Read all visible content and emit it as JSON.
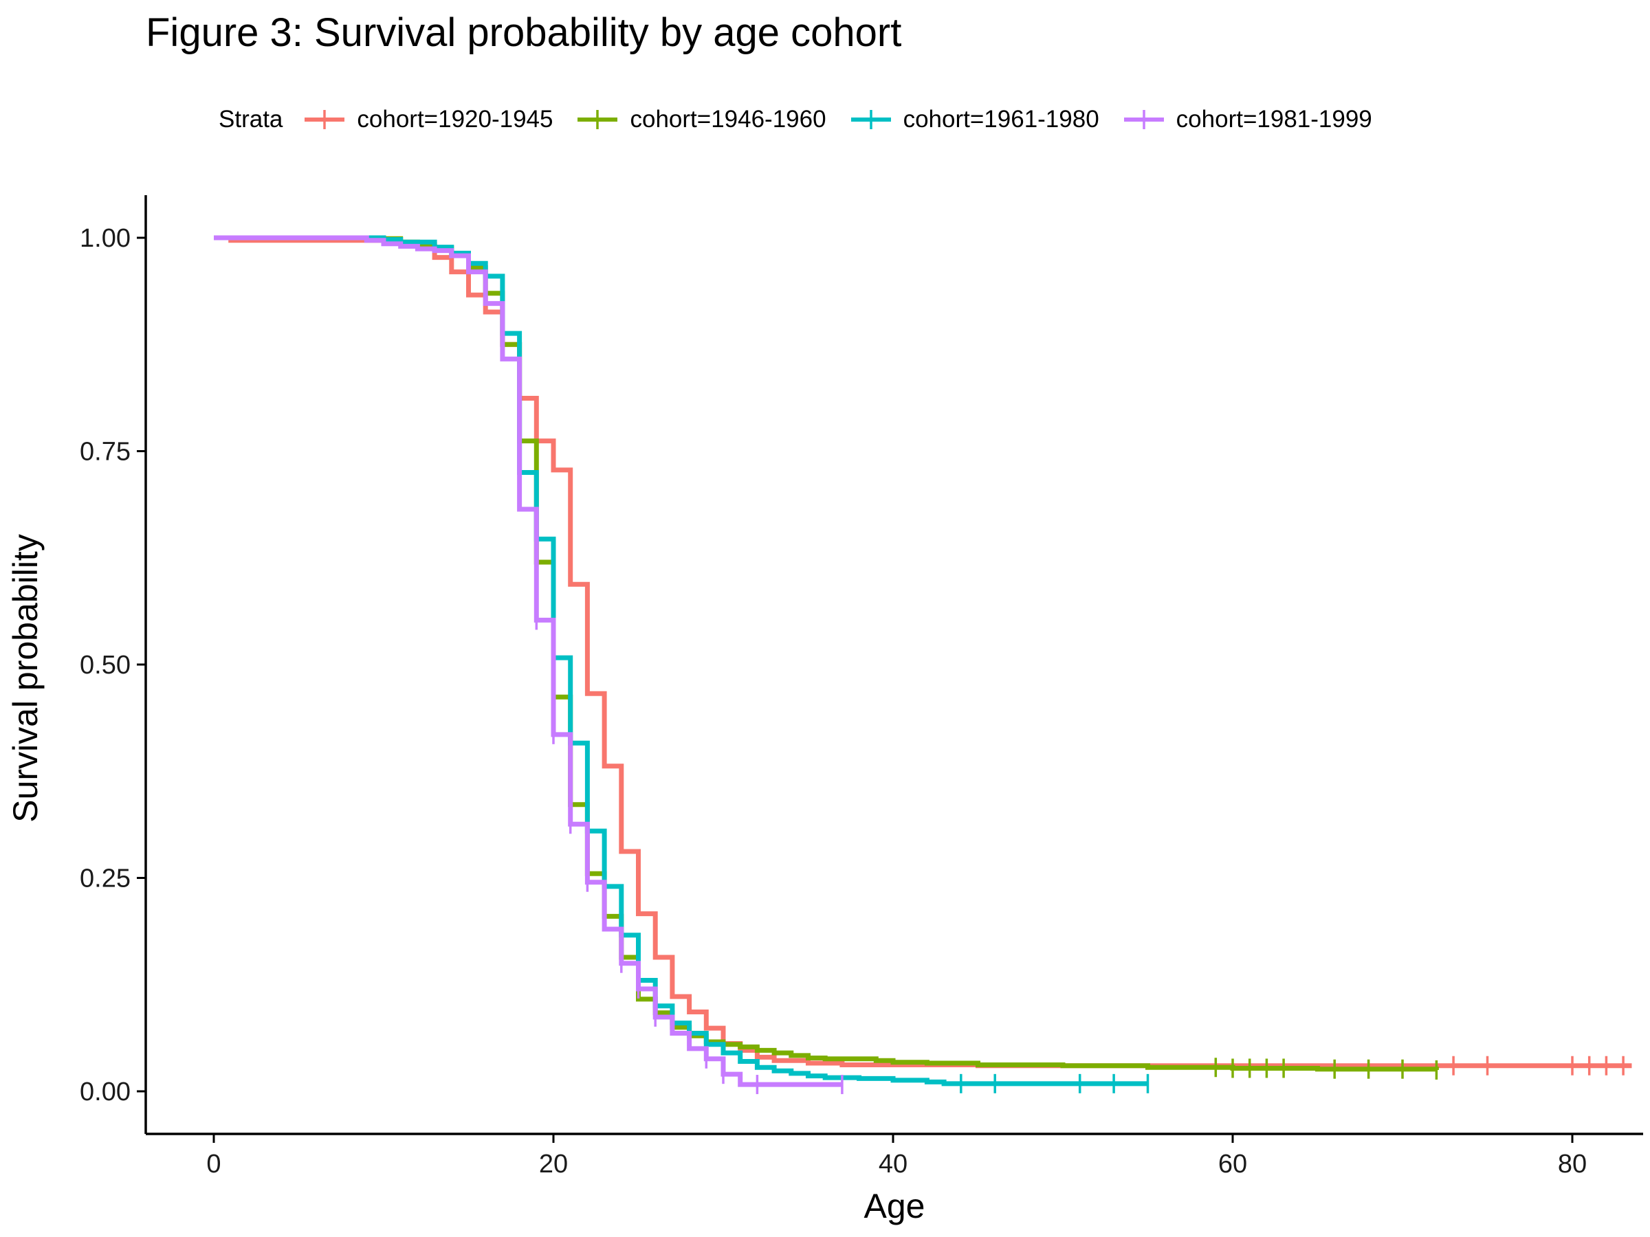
{
  "chart_data": {
    "type": "line",
    "title": "Figure 3: Survival probability by age cohort",
    "xlabel": "Age",
    "ylabel": "Survival probability",
    "xlim": [
      -5,
      83.5
    ],
    "ylim": [
      -0.05,
      1.05
    ],
    "x_ticks": [
      0,
      20,
      40,
      60,
      80
    ],
    "x_tick_labels": [
      "0",
      "20",
      "40",
      "60",
      "80"
    ],
    "y_ticks": [
      0,
      0.25,
      0.5,
      0.75,
      1.0
    ],
    "y_tick_labels": [
      "0.00",
      "0.25",
      "0.50",
      "0.75",
      "1.00"
    ],
    "grid": false,
    "legend_position": "top",
    "legend_title": "Strata",
    "series": [
      {
        "name": "cohort=1920-1945",
        "color": "#F8766D",
        "steps": [
          [
            0,
            1.0
          ],
          [
            1,
            0.997
          ],
          [
            10,
            0.996
          ],
          [
            11,
            0.993
          ],
          [
            12,
            0.99
          ],
          [
            13,
            0.977
          ],
          [
            14,
            0.96
          ],
          [
            15,
            0.933
          ],
          [
            16,
            0.913
          ],
          [
            17,
            0.875
          ],
          [
            18,
            0.812
          ],
          [
            19,
            0.762
          ],
          [
            20,
            0.728
          ],
          [
            21,
            0.594
          ],
          [
            22,
            0.466
          ],
          [
            23,
            0.381
          ],
          [
            24,
            0.281
          ],
          [
            25,
            0.208
          ],
          [
            26,
            0.157
          ],
          [
            27,
            0.111
          ],
          [
            28,
            0.093
          ],
          [
            29,
            0.074
          ],
          [
            30,
            0.056
          ],
          [
            31,
            0.048
          ],
          [
            32,
            0.04
          ],
          [
            33,
            0.036
          ],
          [
            35,
            0.033
          ],
          [
            37,
            0.031
          ],
          [
            45,
            0.03
          ],
          [
            83.5,
            0.03
          ]
        ],
        "censor_x": [
          73,
          75,
          80,
          81,
          82,
          83
        ]
      },
      {
        "name": "cohort=1946-1960",
        "color": "#7CAE00",
        "steps": [
          [
            0,
            1.0
          ],
          [
            10,
            0.999
          ],
          [
            11,
            0.995
          ],
          [
            12,
            0.992
          ],
          [
            13,
            0.988
          ],
          [
            14,
            0.98
          ],
          [
            15,
            0.965
          ],
          [
            16,
            0.935
          ],
          [
            17,
            0.875
          ],
          [
            18,
            0.762
          ],
          [
            19,
            0.62
          ],
          [
            20,
            0.462
          ],
          [
            21,
            0.336
          ],
          [
            22,
            0.255
          ],
          [
            23,
            0.205
          ],
          [
            24,
            0.157
          ],
          [
            25,
            0.108
          ],
          [
            26,
            0.092
          ],
          [
            27,
            0.075
          ],
          [
            28,
            0.065
          ],
          [
            29,
            0.058
          ],
          [
            30,
            0.055
          ],
          [
            31,
            0.052
          ],
          [
            32,
            0.048
          ],
          [
            33,
            0.045
          ],
          [
            34,
            0.042
          ],
          [
            35,
            0.039
          ],
          [
            36,
            0.038
          ],
          [
            39,
            0.036
          ],
          [
            40,
            0.034
          ],
          [
            42,
            0.033
          ],
          [
            45,
            0.031
          ],
          [
            50,
            0.03
          ],
          [
            55,
            0.028
          ],
          [
            60,
            0.027
          ],
          [
            65,
            0.026
          ],
          [
            72,
            0.025
          ]
        ],
        "censor_x": [
          59,
          60,
          61,
          62,
          63,
          66,
          68,
          70,
          72
        ]
      },
      {
        "name": "cohort=1961-1980",
        "color": "#00BFC4",
        "steps": [
          [
            0,
            1.0
          ],
          [
            10,
            0.998
          ],
          [
            11,
            0.995
          ],
          [
            13,
            0.989
          ],
          [
            14,
            0.982
          ],
          [
            15,
            0.97
          ],
          [
            16,
            0.955
          ],
          [
            17,
            0.888
          ],
          [
            18,
            0.725
          ],
          [
            19,
            0.647
          ],
          [
            20,
            0.508
          ],
          [
            21,
            0.408
          ],
          [
            22,
            0.305
          ],
          [
            23,
            0.24
          ],
          [
            24,
            0.183
          ],
          [
            25,
            0.13
          ],
          [
            26,
            0.1
          ],
          [
            27,
            0.08
          ],
          [
            28,
            0.068
          ],
          [
            29,
            0.055
          ],
          [
            30,
            0.045
          ],
          [
            31,
            0.035
          ],
          [
            32,
            0.028
          ],
          [
            33,
            0.024
          ],
          [
            34,
            0.021
          ],
          [
            35,
            0.018
          ],
          [
            36,
            0.016
          ],
          [
            38,
            0.015
          ],
          [
            40,
            0.013
          ],
          [
            42,
            0.011
          ],
          [
            43,
            0.009
          ],
          [
            55,
            0.009
          ]
        ],
        "censor_x": [
          44,
          46,
          51,
          53,
          55
        ]
      },
      {
        "name": "cohort=1981-1999",
        "color": "#C77CFF",
        "steps": [
          [
            0,
            1.0
          ],
          [
            9,
            0.997
          ],
          [
            10,
            0.993
          ],
          [
            11,
            0.99
          ],
          [
            12,
            0.987
          ],
          [
            13,
            0.985
          ],
          [
            14,
            0.979
          ],
          [
            15,
            0.96
          ],
          [
            16,
            0.923
          ],
          [
            17,
            0.858
          ],
          [
            18,
            0.682
          ],
          [
            19,
            0.552
          ],
          [
            20,
            0.418
          ],
          [
            21,
            0.313
          ],
          [
            22,
            0.245
          ],
          [
            23,
            0.19
          ],
          [
            24,
            0.15
          ],
          [
            25,
            0.12
          ],
          [
            26,
            0.087
          ],
          [
            27,
            0.068
          ],
          [
            28,
            0.05
          ],
          [
            29,
            0.038
          ],
          [
            30,
            0.02
          ],
          [
            31,
            0.008
          ],
          [
            37,
            0.008
          ]
        ],
        "censor_x": [
          19,
          20,
          21,
          22,
          24,
          25,
          26,
          29,
          30,
          32,
          37
        ]
      }
    ]
  }
}
